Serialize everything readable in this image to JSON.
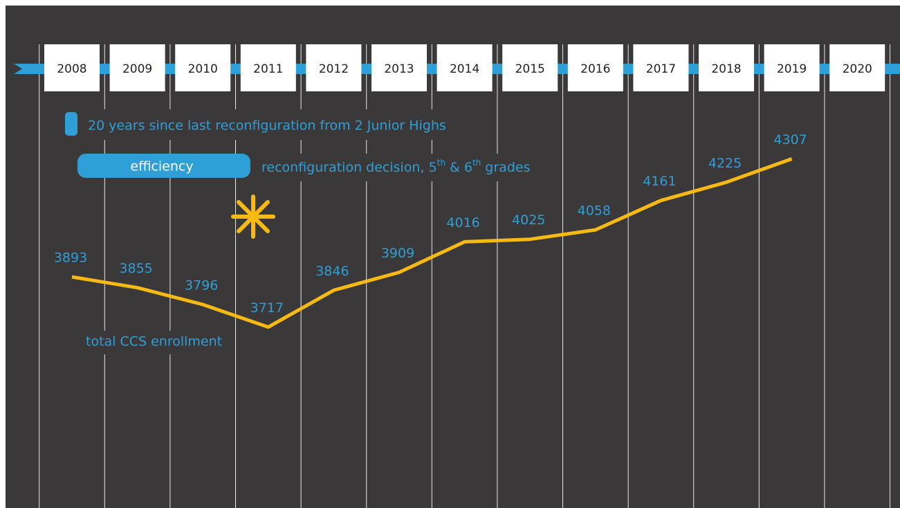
{
  "chart_data": {
    "type": "line",
    "categories": [
      "2008",
      "2009",
      "2010",
      "2011",
      "2012",
      "2013",
      "2014",
      "2015",
      "2016",
      "2017",
      "2018",
      "2019",
      "2020"
    ],
    "values": [
      3893,
      3855,
      3796,
      3717,
      3846,
      3909,
      4016,
      4025,
      4058,
      4161,
      4225,
      4307,
      null
    ],
    "color": "#f7b914",
    "ylim": [
      3500,
      4500
    ],
    "annotations": [
      "20 years since last reconfiguration from 2 Junior Highs",
      "efficiency",
      "reconfiguration decision, 5th & 6th grades",
      "total CCS enrollment"
    ]
  }
}
